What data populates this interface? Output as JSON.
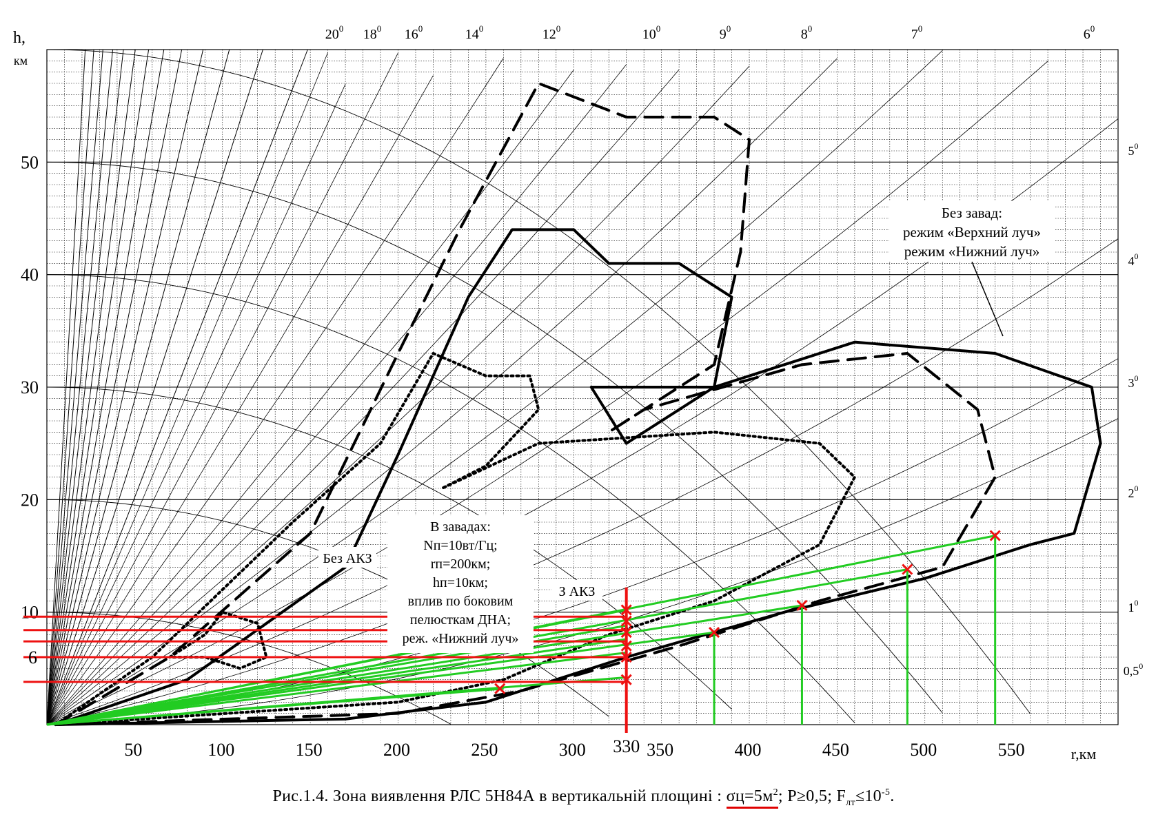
{
  "chart_data": {
    "type": "line",
    "xlabel": "r,км",
    "ylabel_h": "h,",
    "ylabel_unit": "км",
    "x_ticks": [
      50,
      100,
      150,
      200,
      250,
      300,
      350,
      400,
      450,
      500,
      550
    ],
    "y_ticks": [
      10,
      20,
      30,
      40,
      50
    ],
    "xlim": [
      0,
      610
    ],
    "ylim": [
      0,
      60
    ],
    "grid": true,
    "elevation_top": [
      {
        "label": "20",
        "sup": "0"
      },
      {
        "label": "18",
        "sup": "0"
      },
      {
        "label": "16",
        "sup": "0"
      },
      {
        "label": "14",
        "sup": "0"
      },
      {
        "label": "12",
        "sup": "0"
      },
      {
        "label": "10",
        "sup": "0"
      },
      {
        "label": "9",
        "sup": "0"
      },
      {
        "label": "8",
        "sup": "0"
      },
      {
        "label": "7",
        "sup": "0"
      },
      {
        "label": "6",
        "sup": "0"
      }
    ],
    "elevation_right": [
      {
        "label": "5",
        "sup": "0"
      },
      {
        "label": "4",
        "sup": "0"
      },
      {
        "label": "3",
        "sup": "0"
      },
      {
        "label": "2",
        "sup": "0"
      },
      {
        "label": "1",
        "sup": "0"
      },
      {
        "label": "0,5",
        "sup": "0"
      }
    ],
    "annotations": {
      "no_jam_lines": [
        "Без завад:",
        "режим «Верхний луч»",
        "режим «Нижний луч»"
      ],
      "jam_lines": [
        "В завадах:",
        "Nп=10вт/Гц;",
        "rп=200км;",
        "hп=10км;",
        "вплив по боковим",
        "пелюсткам ДНА;",
        "реж. «Нижний луч»"
      ],
      "no_akz": "Без АКЗ",
      "with_akz": "З АКЗ",
      "marked_range": "330",
      "marked_height": "6"
    },
    "series": [
      {
        "name": "",
        "style": "solid",
        "points": [
          [
            5,
            0
          ],
          [
            80,
            4
          ],
          [
            170,
            14
          ],
          [
            200,
            24
          ],
          [
            240,
            38
          ],
          [
            265,
            44
          ],
          [
            300,
            44
          ],
          [
            320,
            41
          ],
          [
            360,
            41
          ],
          [
            390,
            38
          ],
          [
            380,
            30
          ],
          [
            330,
            25
          ],
          [
            310,
            30
          ],
          [
            380,
            30
          ],
          [
            460,
            34
          ],
          [
            540,
            33
          ],
          [
            595,
            30
          ],
          [
            600,
            25
          ],
          [
            585,
            17
          ],
          [
            560,
            16
          ],
          [
            500,
            13
          ],
          [
            420,
            10
          ],
          [
            330,
            6
          ],
          [
            250,
            2
          ],
          [
            170,
            0.5
          ],
          [
            5,
            0
          ]
        ]
      },
      {
        "name": "",
        "style": "dashed",
        "points": [
          [
            5,
            0
          ],
          [
            70,
            6
          ],
          [
            150,
            17
          ],
          [
            200,
            33
          ],
          [
            235,
            44
          ],
          [
            280,
            57
          ],
          [
            330,
            54
          ],
          [
            380,
            54
          ],
          [
            400,
            52
          ],
          [
            395,
            42
          ],
          [
            380,
            32
          ],
          [
            320,
            26
          ],
          [
            340,
            28
          ],
          [
            430,
            32
          ],
          [
            490,
            33
          ],
          [
            530,
            28
          ],
          [
            540,
            22
          ],
          [
            510,
            14
          ],
          [
            440,
            11
          ],
          [
            360,
            7
          ],
          [
            270,
            3
          ],
          [
            200,
            1
          ],
          [
            5,
            0
          ]
        ]
      },
      {
        "name": "",
        "style": "dotted",
        "points": [
          [
            5,
            0
          ],
          [
            60,
            6
          ],
          [
            140,
            18
          ],
          [
            190,
            25
          ],
          [
            220,
            33
          ],
          [
            250,
            31
          ],
          [
            275,
            31
          ],
          [
            280,
            28
          ],
          [
            250,
            23
          ],
          [
            225,
            21
          ],
          [
            280,
            25
          ],
          [
            380,
            26
          ],
          [
            440,
            25
          ],
          [
            460,
            22
          ],
          [
            440,
            16
          ],
          [
            380,
            11
          ],
          [
            320,
            8
          ],
          [
            260,
            4
          ],
          [
            200,
            2
          ],
          [
            5,
            0
          ]
        ]
      },
      {
        "name": "",
        "style": "dotted",
        "points": [
          [
            70,
            6
          ],
          [
            90,
            8
          ],
          [
            100,
            10
          ],
          [
            120,
            9
          ],
          [
            125,
            6
          ],
          [
            110,
            5
          ],
          [
            90,
            6
          ],
          [
            70,
            6
          ]
        ]
      }
    ]
  },
  "caption": {
    "prefix": "Рис.1.4.  Зона  виявлення  РЛС  5Н84А  в  вертикальній  площині :",
    "sigma": "σц=5м",
    "sigma_sup": "2",
    "rest": "; P≥0,5; F",
    "f_sub": "лт",
    "f_tail": "≤10",
    "f_sup": "-5",
    "end": "."
  },
  "colors": {
    "grid": "#000000",
    "zone": "#000000",
    "green": "#22cc22",
    "red": "#ee1111"
  }
}
